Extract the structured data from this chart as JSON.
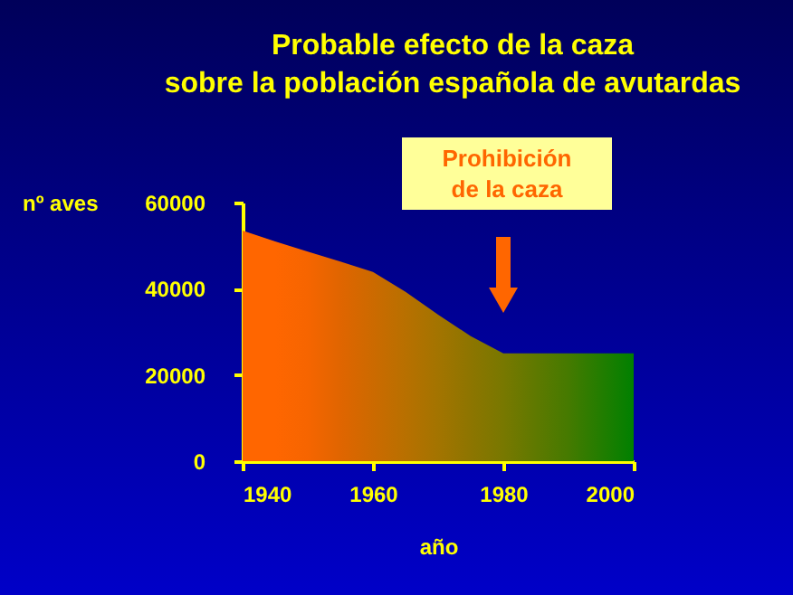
{
  "chart_data": {
    "type": "area",
    "title": [
      "Probable efecto de la caza",
      "sobre la población española de avutardas"
    ],
    "xlabel": "año",
    "ylabel": "nº aves",
    "x": [
      1940,
      1945,
      1950,
      1955,
      1960,
      1965,
      1970,
      1975,
      1980,
      1990,
      2000
    ],
    "series": [
      {
        "colors": [
          "#ff6600",
          "#ff6600",
          "#f66500",
          "#e06500",
          "#cc6a00",
          "#b87000",
          "#a37400",
          "#8d7500",
          "#787800",
          "#457a00",
          "#008000"
        ],
        "values": [
          53500,
          51000,
          48600,
          46300,
          43900,
          39300,
          34000,
          29000,
          25000,
          25000,
          25000
        ]
      }
    ],
    "xlim": [
      1940,
      2000
    ],
    "xticks": [
      1940,
      1960,
      1980,
      2000
    ],
    "ylim": [
      0,
      60000
    ],
    "yticks": [
      0,
      20000,
      40000,
      60000
    ],
    "grid": false,
    "annotations": [
      "Prohibición de la caza"
    ]
  }
}
